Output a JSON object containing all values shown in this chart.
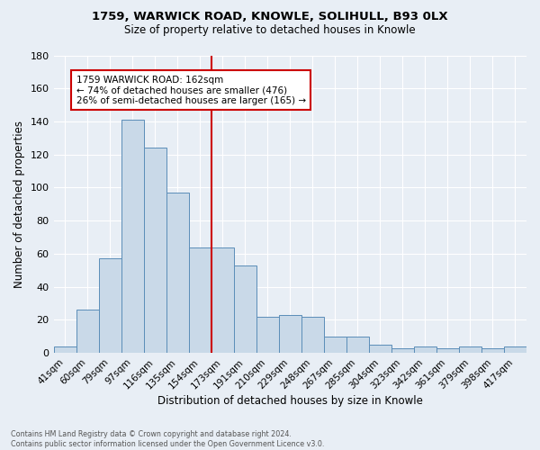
{
  "title1": "1759, WARWICK ROAD, KNOWLE, SOLIHULL, B93 0LX",
  "title2": "Size of property relative to detached houses in Knowle",
  "xlabel": "Distribution of detached houses by size in Knowle",
  "ylabel": "Number of detached properties",
  "categories": [
    "41sqm",
    "60sqm",
    "79sqm",
    "97sqm",
    "116sqm",
    "135sqm",
    "154sqm",
    "173sqm",
    "191sqm",
    "210sqm",
    "229sqm",
    "248sqm",
    "267sqm",
    "285sqm",
    "304sqm",
    "323sqm",
    "342sqm",
    "361sqm",
    "379sqm",
    "398sqm",
    "417sqm"
  ],
  "values": [
    4,
    26,
    57,
    141,
    124,
    97,
    64,
    64,
    53,
    22,
    23,
    22,
    10,
    10,
    5,
    3,
    4,
    3,
    4,
    3,
    4
  ],
  "bar_color": "#c9d9e8",
  "bar_edge_color": "#5b8db8",
  "background_color": "#e8eef5",
  "ylim": [
    0,
    180
  ],
  "yticks": [
    0,
    20,
    40,
    60,
    80,
    100,
    120,
    140,
    160,
    180
  ],
  "property_line_label": "1759 WARWICK ROAD: 162sqm",
  "annotation_line1": "← 74% of detached houses are smaller (476)",
  "annotation_line2": "26% of semi-detached houses are larger (165) →",
  "annotation_box_color": "#ffffff",
  "annotation_box_edge": "#cc0000",
  "red_line_color": "#cc0000",
  "footer1": "Contains HM Land Registry data © Crown copyright and database right 2024.",
  "footer2": "Contains public sector information licensed under the Open Government Licence v3.0."
}
